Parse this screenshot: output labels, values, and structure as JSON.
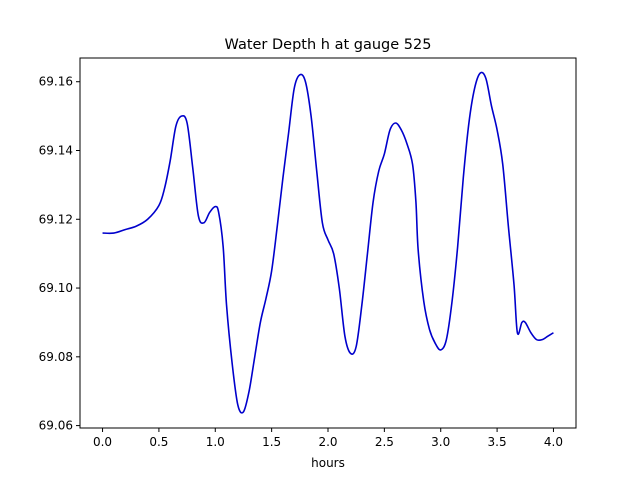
{
  "chart_data": {
    "type": "line",
    "title": "Water Depth h at gauge 525",
    "xlabel": "hours",
    "ylabel": "",
    "xlim": [
      -0.2,
      4.2
    ],
    "ylim": [
      69.0593,
      69.1669
    ],
    "xticks": [
      0.0,
      0.5,
      1.0,
      1.5,
      2.0,
      2.5,
      3.0,
      3.5,
      4.0
    ],
    "xtick_labels": [
      "0.0",
      "0.5",
      "1.0",
      "1.5",
      "2.0",
      "2.5",
      "3.0",
      "3.5",
      "4.0"
    ],
    "yticks": [
      69.06,
      69.08,
      69.1,
      69.12,
      69.14,
      69.16
    ],
    "ytick_labels": [
      "69.06",
      "69.08",
      "69.10",
      "69.12",
      "69.14",
      "69.16"
    ],
    "grid": false,
    "series": [
      {
        "name": "",
        "color": "#0000cc",
        "x": [
          0.0,
          0.1,
          0.2,
          0.3,
          0.4,
          0.5,
          0.55,
          0.6,
          0.65,
          0.7,
          0.75,
          0.8,
          0.85,
          0.9,
          0.95,
          1.0,
          1.03,
          1.07,
          1.1,
          1.15,
          1.2,
          1.25,
          1.3,
          1.35,
          1.4,
          1.45,
          1.5,
          1.55,
          1.6,
          1.65,
          1.7,
          1.75,
          1.8,
          1.85,
          1.9,
          1.95,
          2.0,
          2.05,
          2.1,
          2.15,
          2.2,
          2.25,
          2.3,
          2.35,
          2.4,
          2.45,
          2.5,
          2.55,
          2.6,
          2.65,
          2.7,
          2.75,
          2.78,
          2.8,
          2.85,
          2.9,
          2.95,
          3.0,
          3.05,
          3.1,
          3.15,
          3.2,
          3.25,
          3.3,
          3.35,
          3.4,
          3.45,
          3.5,
          3.55,
          3.6,
          3.65,
          3.68,
          3.72,
          3.75,
          3.8,
          3.85,
          3.9,
          3.95,
          4.0
        ],
        "values": [
          69.116,
          69.116,
          69.117,
          69.118,
          69.12,
          69.124,
          69.129,
          69.137,
          69.147,
          69.15,
          69.148,
          69.135,
          69.121,
          69.119,
          69.122,
          69.1237,
          69.122,
          69.112,
          69.095,
          69.078,
          69.066,
          69.064,
          69.07,
          69.08,
          69.09,
          69.097,
          69.105,
          69.118,
          69.132,
          69.145,
          69.158,
          69.162,
          69.16,
          69.15,
          69.134,
          69.119,
          69.114,
          69.11,
          69.1,
          69.086,
          69.081,
          69.083,
          69.095,
          69.11,
          69.125,
          69.134,
          69.139,
          69.146,
          69.148,
          69.146,
          69.142,
          69.136,
          69.125,
          69.111,
          69.096,
          69.088,
          69.084,
          69.082,
          69.085,
          69.096,
          69.112,
          69.132,
          69.148,
          69.158,
          69.1625,
          69.161,
          69.153,
          69.146,
          69.136,
          69.118,
          69.101,
          69.087,
          69.09,
          69.09,
          69.087,
          69.085,
          69.085,
          69.086,
          69.087
        ]
      }
    ]
  }
}
